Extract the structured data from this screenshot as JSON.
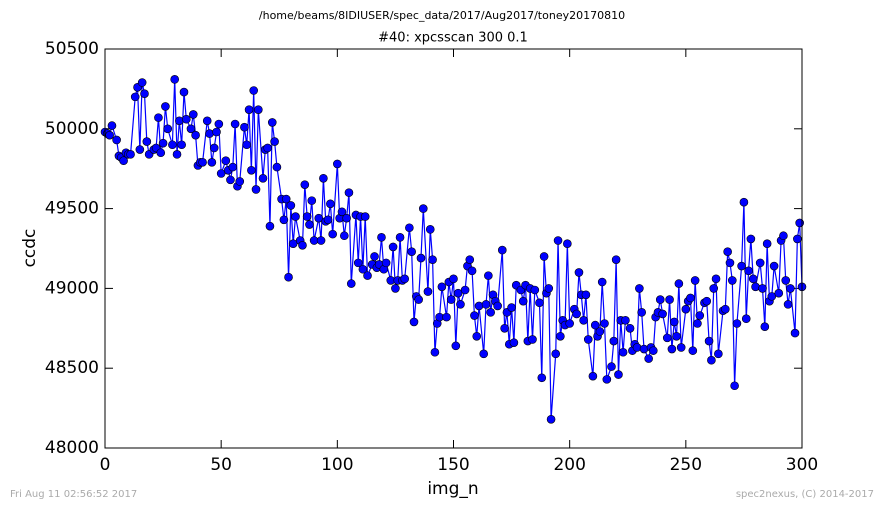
{
  "header": "/home/beams/8IDIUSER/spec_data/2017/Aug2017/toney20170810",
  "footer": {
    "left": "Fri Aug 11 02:56:52 2017",
    "right": "spec2nexus, (C) 2014-2017"
  },
  "chart_data": {
    "type": "line",
    "title": "#40: xpcsscan 300 0.1",
    "x_label": "img_n",
    "y_label": "ccdc",
    "color": "#0000ff",
    "marker": "circle",
    "xlim": [
      0,
      300
    ],
    "xticks": [
      0,
      50,
      100,
      150,
      200,
      250,
      300
    ],
    "ylim": [
      48000,
      50500
    ],
    "yticks": [
      48000,
      48500,
      49000,
      49500,
      50000,
      50500
    ],
    "grid": false,
    "x": [
      0,
      1,
      2,
      3,
      5,
      6,
      7,
      8,
      9,
      10,
      11,
      13,
      14,
      15,
      16,
      17,
      18,
      19,
      21,
      22,
      23,
      24,
      25,
      26,
      27,
      29,
      30,
      31,
      32,
      33,
      34,
      35,
      37,
      38,
      39,
      40,
      41,
      42,
      44,
      45,
      46,
      47,
      48,
      49,
      50,
      52,
      53,
      54,
      55,
      56,
      57,
      58,
      60,
      61,
      62,
      63,
      64,
      65,
      66,
      68,
      69,
      70,
      71,
      72,
      73,
      74,
      76,
      77,
      78,
      79,
      80,
      81,
      82,
      84,
      85,
      86,
      87,
      88,
      89,
      90,
      92,
      93,
      94,
      95,
      96,
      97,
      98,
      100,
      101,
      102,
      103,
      104,
      105,
      106,
      108,
      109,
      110,
      111,
      112,
      113,
      115,
      116,
      117,
      118,
      119,
      120,
      121,
      123,
      124,
      125,
      126,
      127,
      128,
      129,
      131,
      132,
      133,
      134,
      135,
      136,
      137,
      139,
      140,
      141,
      142,
      143,
      144,
      145,
      147,
      148,
      149,
      150,
      151,
      152,
      153,
      155,
      156,
      157,
      158,
      159,
      160,
      161,
      163,
      164,
      165,
      166,
      167,
      168,
      169,
      171,
      172,
      173,
      174,
      175,
      176,
      177,
      179,
      180,
      181,
      182,
      183,
      184,
      185,
      187,
      188,
      189,
      190,
      191,
      192,
      194,
      195,
      196,
      197,
      198,
      199,
      200,
      202,
      203,
      204,
      205,
      206,
      207,
      208,
      210,
      211,
      212,
      213,
      214,
      215,
      216,
      218,
      219,
      220,
      221,
      222,
      223,
      224,
      226,
      227,
      228,
      229,
      230,
      231,
      232,
      234,
      235,
      236,
      237,
      238,
      239,
      240,
      242,
      243,
      244,
      245,
      246,
      247,
      248,
      250,
      251,
      252,
      253,
      254,
      255,
      256,
      258,
      259,
      260,
      261,
      262,
      263,
      264,
      266,
      267,
      268,
      269,
      270,
      271,
      272,
      274,
      275,
      276,
      277,
      278,
      279,
      280,
      282,
      283,
      284,
      285,
      286,
      287,
      288,
      290,
      291,
      292,
      293,
      294,
      295,
      297,
      298,
      299,
      300
    ],
    "values": [
      49980,
      49970,
      49960,
      50020,
      49930,
      49830,
      49820,
      49800,
      49850,
      49840,
      49840,
      50200,
      50260,
      49870,
      50290,
      50220,
      49920,
      49840,
      49870,
      49880,
      50070,
      49850,
      49910,
      50140,
      50000,
      49900,
      50310,
      49840,
      50050,
      49900,
      50230,
      50060,
      50000,
      50090,
      49960,
      49770,
      49790,
      49790,
      50050,
      49970,
      49790,
      49880,
      49980,
      50030,
      49720,
      49800,
      49740,
      49680,
      49760,
      50030,
      49640,
      49670,
      50010,
      49900,
      50120,
      49740,
      50240,
      49620,
      50120,
      49690,
      49870,
      49880,
      49390,
      50040,
      49920,
      49760,
      49560,
      49430,
      49560,
      49070,
      49520,
      49280,
      49450,
      49300,
      49270,
      49650,
      49450,
      49400,
      49550,
      49300,
      49440,
      49300,
      49690,
      49420,
      49430,
      49530,
      49340,
      49780,
      49440,
      49480,
      49330,
      49440,
      49600,
      49030,
      49460,
      49160,
      49450,
      49120,
      49450,
      49080,
      49150,
      49200,
      49130,
      49150,
      49320,
      49120,
      49160,
      49050,
      49260,
      49000,
      49050,
      49320,
      49050,
      49060,
      49380,
      49230,
      48790,
      48950,
      48930,
      49190,
      49500,
      48980,
      49370,
      49180,
      48600,
      48780,
      48820,
      49010,
      48820,
      49040,
      48930,
      49060,
      48640,
      48970,
      48900,
      48990,
      49140,
      49180,
      49110,
      48830,
      48700,
      48890,
      48590,
      48900,
      49080,
      48850,
      48960,
      48920,
      48890,
      49240,
      48750,
      48850,
      48650,
      48880,
      48660,
      49020,
      48990,
      48920,
      49020,
      48670,
      49000,
      48680,
      48990,
      48910,
      48440,
      49200,
      48970,
      49000,
      48180,
      48590,
      49300,
      48700,
      48800,
      48770,
      49280,
      48780,
      48870,
      48840,
      49100,
      48960,
      48800,
      48960,
      48680,
      48450,
      48770,
      48700,
      48730,
      49040,
      48780,
      48430,
      48510,
      48670,
      49180,
      48460,
      48800,
      48600,
      48800,
      48750,
      48610,
      48650,
      48630,
      49000,
      48850,
      48620,
      48560,
      48630,
      48610,
      48820,
      48850,
      48930,
      48840,
      48690,
      48930,
      48620,
      48790,
      48700,
      49030,
      48630,
      48870,
      48920,
      48940,
      48610,
      49050,
      48780,
      48830,
      48910,
      48920,
      48670,
      48550,
      49000,
      49060,
      48590,
      48860,
      48870,
      49230,
      49160,
      49050,
      48390,
      48780,
      49140,
      49540,
      48810,
      49110,
      49310,
      49060,
      49010,
      49160,
      49000,
      48760,
      49280,
      48920,
      48950,
      49140,
      48970,
      49300,
      49330,
      49050,
      48900,
      49000,
      48720,
      49310,
      49410,
      49010
    ]
  }
}
